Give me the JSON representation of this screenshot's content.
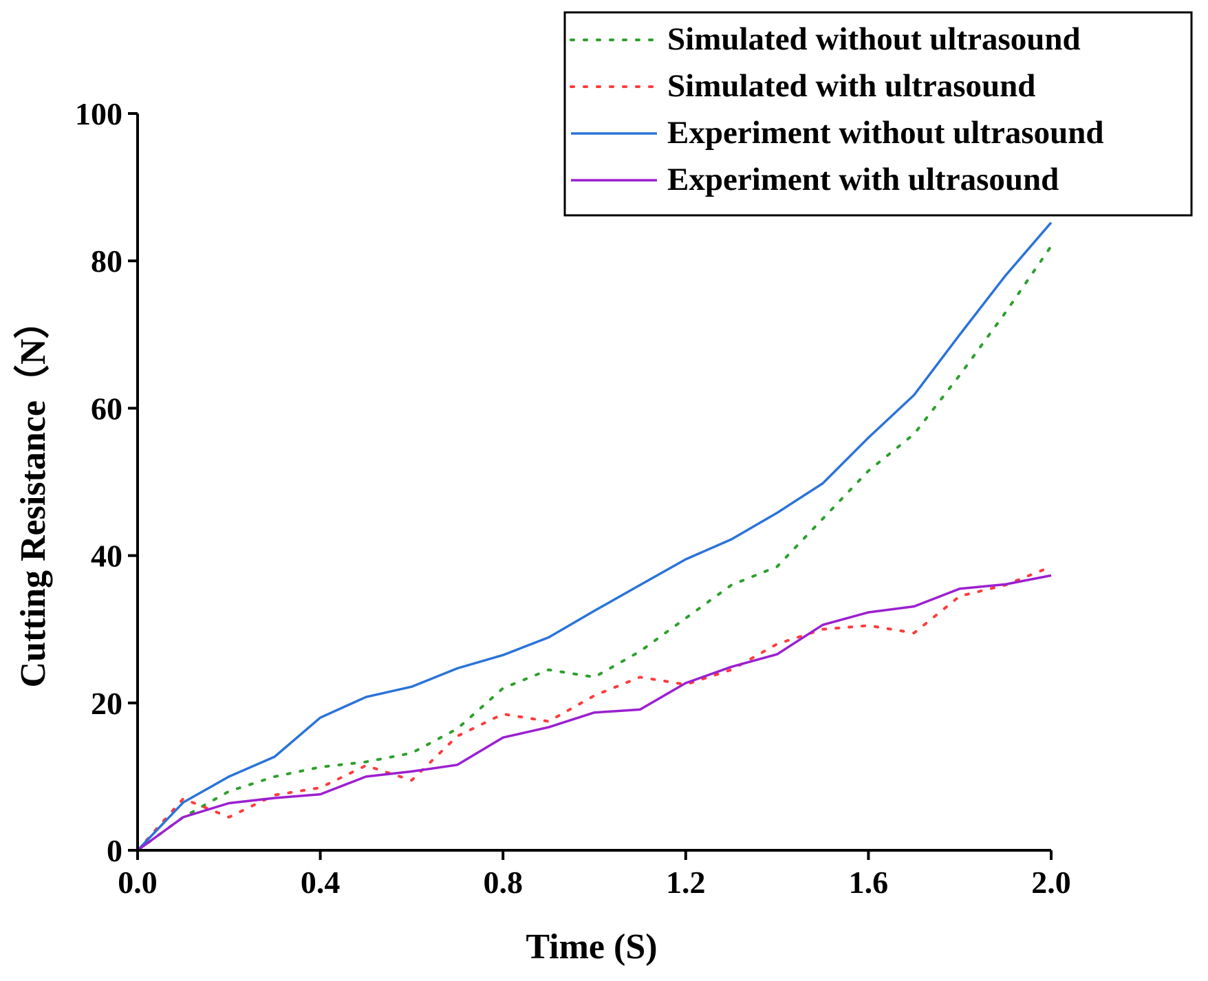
{
  "chart_data": {
    "type": "line",
    "xlabel": "Time (S)",
    "ylabel": "Cutting Resistance（N）",
    "xlim": [
      0.0,
      2.0
    ],
    "ylim": [
      0,
      100
    ],
    "xticks": [
      0.0,
      0.4,
      0.8,
      1.2,
      1.6,
      2.0
    ],
    "xtick_labels": [
      "0.0",
      "0.4",
      "0.8",
      "1.2",
      "1.6",
      "2.0"
    ],
    "yticks": [
      0,
      20,
      40,
      60,
      80,
      100
    ],
    "ytick_labels": [
      "0",
      "20",
      "40",
      "60",
      "80",
      "100"
    ],
    "grid": false,
    "legend_position": "top-right",
    "x": [
      0.0,
      0.1,
      0.2,
      0.3,
      0.4,
      0.5,
      0.6,
      0.7,
      0.8,
      0.9,
      1.0,
      1.1,
      1.2,
      1.3,
      1.4,
      1.5,
      1.6,
      1.7,
      1.8,
      1.9,
      2.0
    ],
    "series": [
      {
        "name": "Simulated without ultrasound",
        "color": "#2ca02c",
        "style": "dotted",
        "values": [
          0,
          4.5,
          8,
          10,
          11.3,
          12,
          13.2,
          16.5,
          22,
          24.5,
          23.5,
          27,
          31.5,
          36,
          38.5,
          45,
          51.5,
          56.5,
          64.5,
          73,
          82
        ]
      },
      {
        "name": "Simulated with ultrasound",
        "color": "#ff3b3b",
        "style": "dotted",
        "values": [
          0,
          7,
          4.5,
          7.5,
          8.5,
          11.5,
          9.5,
          15.5,
          18.5,
          17.5,
          21,
          23.5,
          22.5,
          24.5,
          28,
          30,
          30.5,
          29.5,
          34.5,
          36,
          38.5
        ]
      },
      {
        "name": "Experiment without ultrasound",
        "color": "#2a73d9",
        "style": "solid",
        "values": [
          0,
          6.5,
          10,
          12.7,
          18,
          20.8,
          22.2,
          24.7,
          26.5,
          28.9,
          32.5,
          36,
          39.5,
          42.2,
          45.8,
          49.8,
          56,
          61.8,
          70,
          78,
          85.2
        ]
      },
      {
        "name": "Experiment with ultrasound",
        "color": "#9b1fd1",
        "style": "solid",
        "values": [
          0,
          4.5,
          6.4,
          7.1,
          7.6,
          10,
          10.7,
          11.6,
          15.3,
          16.7,
          18.7,
          19.1,
          22.7,
          24.9,
          26.6,
          30.6,
          32.3,
          33.1,
          35.5,
          36.1,
          37.3
        ]
      }
    ]
  }
}
